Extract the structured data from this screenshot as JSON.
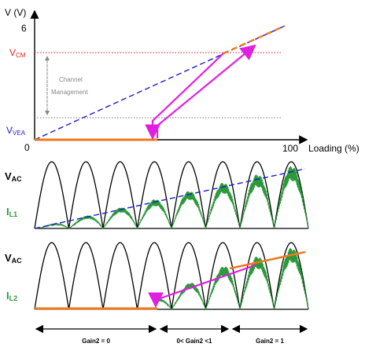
{
  "top_chart": {
    "y_axis_label": "V (V)",
    "y_max_label": "6",
    "vcm_label_main": "V",
    "vcm_label_sub": "CM",
    "vvea_label_main": "V",
    "vvea_label_sub": "VEA",
    "x_zero_label": "0",
    "x_max_label": "100",
    "x_axis_label": "Loading (%)",
    "annotation_line1": "Channel",
    "annotation_line2": "Management"
  },
  "middle_chart": {
    "vac_label_main": "V",
    "vac_label_sub": "AC",
    "il_label_main": "I",
    "il_label_sub": "L1"
  },
  "bottom_chart": {
    "vac_label_main": "V",
    "vac_label_sub": "AC",
    "il_label_main": "I",
    "il_label_sub": "L2"
  },
  "regions": [
    {
      "label": "Gain2 = 0"
    },
    {
      "label": "0< Gain2 <1"
    },
    {
      "label": "Gain2 = 1"
    }
  ],
  "colors": {
    "axis": "#000000",
    "vcm": "#e8201c",
    "vvea": "#1a1ad0",
    "dashed_blue": "#1a1ad0",
    "orange": "#f07820",
    "magenta": "#e020e0",
    "green": "#2a9a3a",
    "grey": "#888888"
  }
}
